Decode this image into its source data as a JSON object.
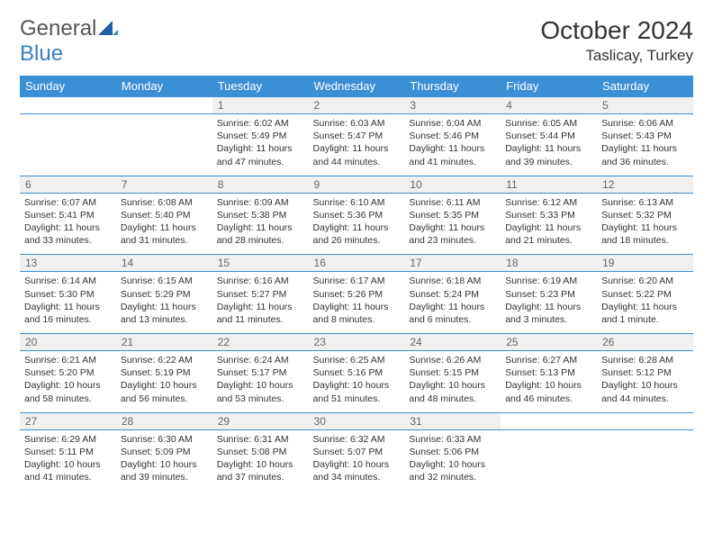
{
  "brand": {
    "name_part1": "General",
    "name_part2": "Blue",
    "logo_color": "#3b8fd4"
  },
  "title": "October 2024",
  "location": "Taslicay, Turkey",
  "colors": {
    "header_bg": "#3b8fd4",
    "header_fg": "#ffffff",
    "daynum_bg": "#f0f0f0",
    "daynum_fg": "#666666",
    "rule": "#3b8fd4",
    "text": "#333333"
  },
  "weekdays": [
    "Sunday",
    "Monday",
    "Tuesday",
    "Wednesday",
    "Thursday",
    "Friday",
    "Saturday"
  ],
  "weeks": [
    [
      null,
      null,
      {
        "n": "1",
        "sr": "Sunrise: 6:02 AM",
        "ss": "Sunset: 5:49 PM",
        "dl": "Daylight: 11 hours and 47 minutes."
      },
      {
        "n": "2",
        "sr": "Sunrise: 6:03 AM",
        "ss": "Sunset: 5:47 PM",
        "dl": "Daylight: 11 hours and 44 minutes."
      },
      {
        "n": "3",
        "sr": "Sunrise: 6:04 AM",
        "ss": "Sunset: 5:46 PM",
        "dl": "Daylight: 11 hours and 41 minutes."
      },
      {
        "n": "4",
        "sr": "Sunrise: 6:05 AM",
        "ss": "Sunset: 5:44 PM",
        "dl": "Daylight: 11 hours and 39 minutes."
      },
      {
        "n": "5",
        "sr": "Sunrise: 6:06 AM",
        "ss": "Sunset: 5:43 PM",
        "dl": "Daylight: 11 hours and 36 minutes."
      }
    ],
    [
      {
        "n": "6",
        "sr": "Sunrise: 6:07 AM",
        "ss": "Sunset: 5:41 PM",
        "dl": "Daylight: 11 hours and 33 minutes."
      },
      {
        "n": "7",
        "sr": "Sunrise: 6:08 AM",
        "ss": "Sunset: 5:40 PM",
        "dl": "Daylight: 11 hours and 31 minutes."
      },
      {
        "n": "8",
        "sr": "Sunrise: 6:09 AM",
        "ss": "Sunset: 5:38 PM",
        "dl": "Daylight: 11 hours and 28 minutes."
      },
      {
        "n": "9",
        "sr": "Sunrise: 6:10 AM",
        "ss": "Sunset: 5:36 PM",
        "dl": "Daylight: 11 hours and 26 minutes."
      },
      {
        "n": "10",
        "sr": "Sunrise: 6:11 AM",
        "ss": "Sunset: 5:35 PM",
        "dl": "Daylight: 11 hours and 23 minutes."
      },
      {
        "n": "11",
        "sr": "Sunrise: 6:12 AM",
        "ss": "Sunset: 5:33 PM",
        "dl": "Daylight: 11 hours and 21 minutes."
      },
      {
        "n": "12",
        "sr": "Sunrise: 6:13 AM",
        "ss": "Sunset: 5:32 PM",
        "dl": "Daylight: 11 hours and 18 minutes."
      }
    ],
    [
      {
        "n": "13",
        "sr": "Sunrise: 6:14 AM",
        "ss": "Sunset: 5:30 PM",
        "dl": "Daylight: 11 hours and 16 minutes."
      },
      {
        "n": "14",
        "sr": "Sunrise: 6:15 AM",
        "ss": "Sunset: 5:29 PM",
        "dl": "Daylight: 11 hours and 13 minutes."
      },
      {
        "n": "15",
        "sr": "Sunrise: 6:16 AM",
        "ss": "Sunset: 5:27 PM",
        "dl": "Daylight: 11 hours and 11 minutes."
      },
      {
        "n": "16",
        "sr": "Sunrise: 6:17 AM",
        "ss": "Sunset: 5:26 PM",
        "dl": "Daylight: 11 hours and 8 minutes."
      },
      {
        "n": "17",
        "sr": "Sunrise: 6:18 AM",
        "ss": "Sunset: 5:24 PM",
        "dl": "Daylight: 11 hours and 6 minutes."
      },
      {
        "n": "18",
        "sr": "Sunrise: 6:19 AM",
        "ss": "Sunset: 5:23 PM",
        "dl": "Daylight: 11 hours and 3 minutes."
      },
      {
        "n": "19",
        "sr": "Sunrise: 6:20 AM",
        "ss": "Sunset: 5:22 PM",
        "dl": "Daylight: 11 hours and 1 minute."
      }
    ],
    [
      {
        "n": "20",
        "sr": "Sunrise: 6:21 AM",
        "ss": "Sunset: 5:20 PM",
        "dl": "Daylight: 10 hours and 58 minutes."
      },
      {
        "n": "21",
        "sr": "Sunrise: 6:22 AM",
        "ss": "Sunset: 5:19 PM",
        "dl": "Daylight: 10 hours and 56 minutes."
      },
      {
        "n": "22",
        "sr": "Sunrise: 6:24 AM",
        "ss": "Sunset: 5:17 PM",
        "dl": "Daylight: 10 hours and 53 minutes."
      },
      {
        "n": "23",
        "sr": "Sunrise: 6:25 AM",
        "ss": "Sunset: 5:16 PM",
        "dl": "Daylight: 10 hours and 51 minutes."
      },
      {
        "n": "24",
        "sr": "Sunrise: 6:26 AM",
        "ss": "Sunset: 5:15 PM",
        "dl": "Daylight: 10 hours and 48 minutes."
      },
      {
        "n": "25",
        "sr": "Sunrise: 6:27 AM",
        "ss": "Sunset: 5:13 PM",
        "dl": "Daylight: 10 hours and 46 minutes."
      },
      {
        "n": "26",
        "sr": "Sunrise: 6:28 AM",
        "ss": "Sunset: 5:12 PM",
        "dl": "Daylight: 10 hours and 44 minutes."
      }
    ],
    [
      {
        "n": "27",
        "sr": "Sunrise: 6:29 AM",
        "ss": "Sunset: 5:11 PM",
        "dl": "Daylight: 10 hours and 41 minutes."
      },
      {
        "n": "28",
        "sr": "Sunrise: 6:30 AM",
        "ss": "Sunset: 5:09 PM",
        "dl": "Daylight: 10 hours and 39 minutes."
      },
      {
        "n": "29",
        "sr": "Sunrise: 6:31 AM",
        "ss": "Sunset: 5:08 PM",
        "dl": "Daylight: 10 hours and 37 minutes."
      },
      {
        "n": "30",
        "sr": "Sunrise: 6:32 AM",
        "ss": "Sunset: 5:07 PM",
        "dl": "Daylight: 10 hours and 34 minutes."
      },
      {
        "n": "31",
        "sr": "Sunrise: 6:33 AM",
        "ss": "Sunset: 5:06 PM",
        "dl": "Daylight: 10 hours and 32 minutes."
      },
      null,
      null
    ]
  ]
}
